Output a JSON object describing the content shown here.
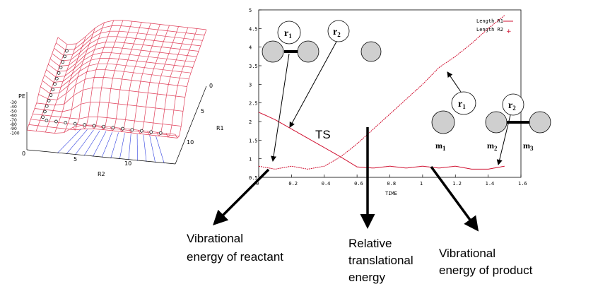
{
  "surface": {
    "z_label": "PE",
    "z_ticks": [
      "-30",
      "-40",
      "-50",
      "-60",
      "-70",
      "-80",
      "-90",
      "-100"
    ],
    "r1_axis_label": "R1",
    "r1_ticks": [
      "0",
      "5",
      "10"
    ],
    "r2_axis_label": "R2",
    "r2_ticks": [
      "0",
      "5",
      "10"
    ]
  },
  "plot": {
    "x_label": "TIME",
    "x_ticks": [
      "0",
      "0.2",
      "0.4",
      "0.6",
      "0.8",
      "1",
      "1.2",
      "1.4",
      "1.6"
    ],
    "y_ticks": [
      "0.5",
      "1",
      "1.5",
      "2",
      "2.5",
      "3",
      "3.5",
      "4",
      "4.5",
      "5"
    ],
    "legend": [
      "Length R1",
      "Length R2"
    ],
    "ts_label": "TS"
  },
  "molecule": {
    "r1_label": "r",
    "r1_sub": "1",
    "r2_label": "r",
    "r2_sub": "2",
    "m1_label": "m",
    "m1_sub": "1",
    "m2_label": "m",
    "m2_sub": "2",
    "m3_label": "m",
    "m3_sub": "3"
  },
  "annotations": {
    "reactant": [
      "Vibrational",
      "energy of reactant"
    ],
    "translational": [
      "Relative",
      "translational",
      "energy"
    ],
    "product": [
      "Vibrational",
      "energy of product"
    ]
  },
  "colors": {
    "grid_red": "#e0405a",
    "grid_blue": "#3040e0",
    "curve": "#d01030",
    "atom_fill": "#cfcfcf"
  },
  "chart_data": {
    "type": "line",
    "xlabel": "TIME",
    "ylabel": "",
    "xlim": [
      0,
      1.6
    ],
    "ylim": [
      0.5,
      5
    ],
    "series": [
      {
        "name": "Length R1",
        "x": [
          0,
          0.1,
          0.2,
          0.3,
          0.4,
          0.5,
          0.6,
          0.7,
          0.8,
          0.9,
          1.0,
          1.1,
          1.2,
          1.3,
          1.4,
          1.5
        ],
        "y": [
          2.25,
          2.05,
          1.8,
          1.55,
          1.3,
          1.05,
          0.78,
          0.75,
          0.8,
          0.75,
          0.8,
          0.75,
          0.8,
          0.72,
          0.72,
          0.8
        ]
      },
      {
        "name": "Length R2",
        "x": [
          0,
          0.1,
          0.2,
          0.3,
          0.4,
          0.5,
          0.6,
          0.7,
          0.8,
          0.9,
          1.0,
          1.1,
          1.2,
          1.3,
          1.4,
          1.5
        ],
        "y": [
          0.8,
          0.72,
          0.8,
          0.72,
          0.8,
          1.05,
          1.4,
          1.8,
          2.2,
          2.6,
          3.0,
          3.45,
          3.75,
          4.1,
          4.5,
          4.85
        ]
      }
    ]
  }
}
